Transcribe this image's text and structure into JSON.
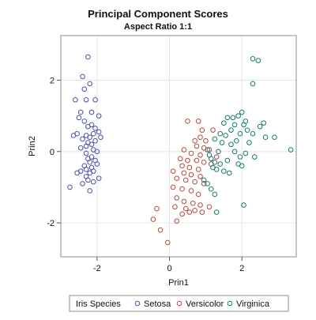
{
  "chart_data": {
    "type": "scatter",
    "title": "Principal Component Scores",
    "subtitle": "Aspect Ratio 1:1",
    "xlabel": "Prin1",
    "ylabel": "Prin2",
    "xlim": [
      -3.0,
      3.5
    ],
    "ylim": [
      -2.95,
      3.25
    ],
    "xticks": [
      -2,
      0,
      2
    ],
    "yticks": [
      -2,
      0,
      2
    ],
    "grid": true,
    "legend": {
      "title": "Iris Species",
      "position": "bottom"
    },
    "series": [
      {
        "name": "Setosa",
        "color": "#4a50a8",
        "x": [
          -2.25,
          -2.4,
          -2.2,
          -2.35,
          -2.6,
          -2.3,
          -2.05,
          -2.45,
          -2.15,
          -1.95,
          -2.5,
          -2.35,
          -2.15,
          -2.25,
          -2.05,
          -1.95,
          -2.1,
          -2.55,
          -2.3,
          -2.2,
          -1.9,
          -2.4,
          -2.05,
          -2.25,
          -2.15,
          -2.3,
          -2.45,
          -2.1,
          -2.0,
          -2.3,
          -2.15,
          -2.25,
          -2.05,
          -2.2,
          -2.0,
          -2.35,
          -2.15,
          -2.3,
          -2.1,
          -2.45,
          -2.2,
          -2.55,
          -2.3,
          -1.95,
          -2.25,
          -2.1,
          -2.4,
          -2.2,
          -2.75,
          -2.65
        ],
        "y": [
          2.65,
          2.1,
          1.9,
          1.75,
          1.45,
          1.45,
          1.45,
          1.1,
          1.1,
          1.0,
          0.95,
          0.85,
          0.75,
          0.7,
          0.65,
          0.55,
          0.5,
          0.5,
          0.45,
          0.4,
          0.4,
          0.35,
          0.3,
          0.25,
          0.2,
          0.15,
          0.1,
          0.05,
          0.0,
          -0.05,
          -0.15,
          -0.2,
          -0.25,
          -0.3,
          -0.35,
          -0.4,
          -0.45,
          -0.5,
          -0.55,
          -0.55,
          -0.6,
          -0.6,
          -0.7,
          -0.75,
          -0.8,
          -0.85,
          -0.9,
          -1.1,
          -1.0,
          0.45
        ]
      },
      {
        "name": "Versicolor",
        "color": "#b64b3a",
        "x": [
          0.8,
          0.5,
          0.9,
          1.2,
          0.85,
          0.7,
          1.0,
          0.75,
          0.95,
          0.4,
          1.1,
          0.6,
          0.85,
          1.3,
          0.3,
          0.5,
          0.75,
          0.95,
          1.15,
          0.35,
          0.55,
          0.8,
          0.1,
          0.4,
          0.6,
          0.85,
          0.2,
          0.45,
          0.7,
          0.95,
          0.1,
          0.35,
          0.6,
          0.8,
          0.2,
          0.4,
          0.65,
          0.85,
          0.15,
          0.45,
          0.7,
          0.9,
          0.35,
          1.1,
          0.55,
          0.2,
          -0.35,
          -0.45,
          -0.25,
          -0.05
        ],
        "y": [
          0.85,
          0.85,
          0.6,
          0.6,
          0.4,
          0.3,
          0.3,
          0.15,
          0.1,
          0.05,
          0.05,
          -0.05,
          -0.1,
          -0.15,
          -0.2,
          -0.25,
          -0.25,
          -0.3,
          -0.35,
          -0.4,
          -0.45,
          -0.5,
          -0.55,
          -0.6,
          -0.65,
          -0.7,
          -0.75,
          -0.8,
          -0.85,
          -0.9,
          -1.0,
          -1.05,
          -1.1,
          -1.2,
          -1.3,
          -1.4,
          -1.45,
          -1.5,
          -1.55,
          -1.6,
          -1.65,
          -1.7,
          -1.75,
          -1.55,
          -1.7,
          -1.95,
          -1.6,
          -1.9,
          -2.2,
          -2.55
        ]
      },
      {
        "name": "Virginica",
        "color": "#187a6e",
        "x": [
          2.3,
          2.45,
          2.3,
          2.0,
          1.9,
          1.6,
          1.75,
          2.1,
          1.5,
          1.8,
          2.05,
          2.6,
          2.5,
          2.15,
          1.7,
          1.4,
          2.3,
          1.95,
          1.55,
          2.65,
          2.9,
          1.25,
          1.85,
          2.2,
          1.45,
          1.7,
          3.35,
          1.05,
          1.35,
          1.8,
          2.1,
          1.1,
          1.95,
          2.35,
          1.15,
          1.6,
          1.25,
          1.4,
          1.9,
          2.0,
          1.2,
          1.3,
          1.5,
          1.65,
          0.95,
          1.05,
          1.15,
          1.25,
          1.3,
          2.05
        ],
        "y": [
          2.6,
          2.55,
          1.9,
          1.1,
          1.0,
          0.95,
          0.95,
          0.85,
          0.8,
          0.75,
          0.75,
          0.8,
          0.7,
          0.6,
          0.6,
          0.5,
          0.5,
          0.5,
          0.45,
          0.4,
          0.4,
          0.35,
          0.3,
          0.25,
          0.25,
          0.2,
          0.05,
          0.05,
          0.0,
          0.0,
          -0.05,
          -0.1,
          -0.15,
          -0.15,
          -0.2,
          -0.25,
          -0.3,
          -0.35,
          -0.35,
          -0.4,
          -0.45,
          -0.5,
          -0.55,
          -0.6,
          -0.8,
          -0.9,
          -1.05,
          -1.2,
          -1.7,
          -1.5
        ]
      }
    ]
  }
}
